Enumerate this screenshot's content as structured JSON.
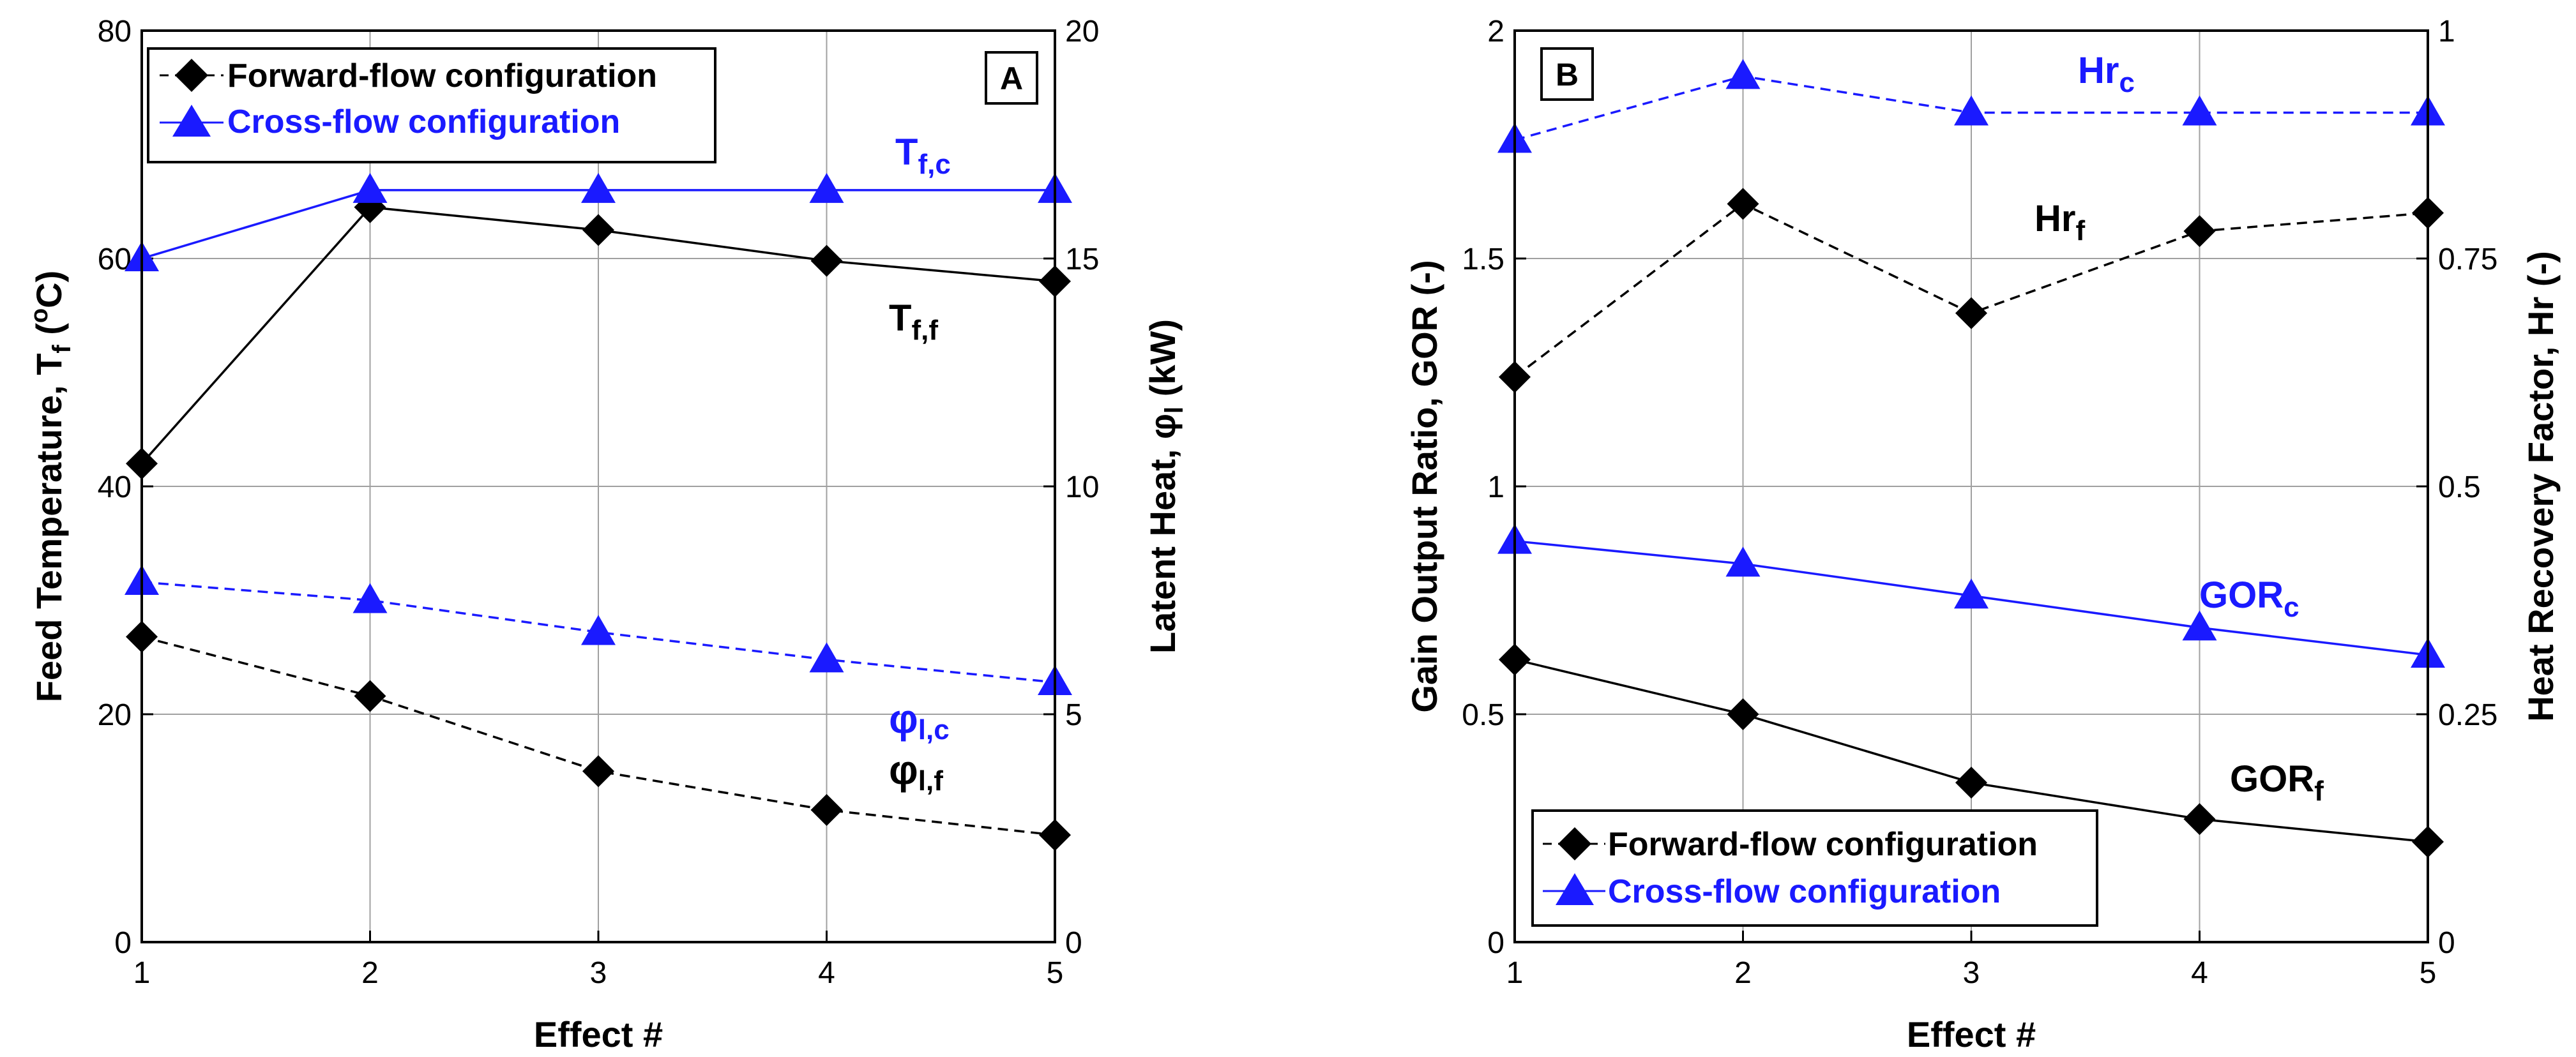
{
  "chart_data": [
    {
      "panel": "A",
      "type": "line",
      "xlabel": "Effect #",
      "ylabel_left": "Feed Temperature, T_f (°C)",
      "ylabel_right": "Latent Heat, φl (kW)",
      "x": [
        1,
        2,
        3,
        4,
        5
      ],
      "xlim": [
        1,
        5
      ],
      "ylim_left": [
        0,
        80
      ],
      "ylim_right": [
        0,
        20
      ],
      "yticks_left": [
        0,
        20,
        40,
        60,
        80
      ],
      "yticks_right": [
        0,
        5,
        10,
        15,
        20
      ],
      "xticks": [
        1,
        2,
        3,
        4,
        5
      ],
      "grid": true,
      "legend": "top-left",
      "legend_entries": [
        {
          "label": "Forward-flow configuration",
          "color": "#000000",
          "marker": "diamond"
        },
        {
          "label": "Cross-flow configuration",
          "color": "#1a1aff",
          "marker": "triangle"
        }
      ],
      "series": [
        {
          "name": "T_f,f",
          "axis": "left",
          "style": "solid",
          "color": "#000000",
          "marker": "diamond",
          "values": [
            42,
            64.5,
            62.5,
            59.8,
            58
          ]
        },
        {
          "name": "T_f,c",
          "axis": "left",
          "style": "solid",
          "color": "#1a1aff",
          "marker": "triangle",
          "values": [
            60,
            66,
            66,
            66,
            66
          ]
        },
        {
          "name": "φl,c",
          "axis": "right",
          "style": "dashed",
          "color": "#1a1aff",
          "marker": "triangle",
          "values": [
            7.9,
            7.5,
            6.8,
            6.2,
            5.7
          ]
        },
        {
          "name": "φl,f",
          "axis": "right",
          "style": "dashed",
          "color": "#000000",
          "marker": "diamond",
          "values": [
            6.7,
            5.4,
            3.75,
            2.9,
            2.35
          ]
        }
      ]
    },
    {
      "panel": "B",
      "type": "line",
      "xlabel": "Effect #",
      "ylabel_left": "Gain Output Ratio, GOR (-)",
      "ylabel_right": "Heat Recovery Factor, Hr (-)",
      "x": [
        1,
        2,
        3,
        4,
        5
      ],
      "xlim": [
        1,
        5
      ],
      "ylim_left": [
        0,
        2
      ],
      "ylim_right": [
        0,
        1
      ],
      "yticks_left": [
        "0",
        "0.5",
        "1",
        "1.5",
        "2"
      ],
      "yticks_right": [
        "0",
        "0.25",
        "0.5",
        "0.75",
        "1"
      ],
      "xticks": [
        1,
        2,
        3,
        4,
        5
      ],
      "grid": true,
      "legend": "bottom-left",
      "legend_entries": [
        {
          "label": "Forward-flow configuration",
          "color": "#000000",
          "marker": "diamond"
        },
        {
          "label": "Cross-flow configuration",
          "color": "#1a1aff",
          "marker": "triangle"
        }
      ],
      "series": [
        {
          "name": "Hr_c",
          "axis": "right",
          "style": "dashed",
          "color": "#1a1aff",
          "marker": "triangle",
          "values": [
            0.88,
            0.95,
            0.91,
            0.91,
            0.91
          ]
        },
        {
          "name": "Hr_f",
          "axis": "right",
          "style": "dashed",
          "color": "#000000",
          "marker": "diamond",
          "values": [
            0.62,
            0.81,
            0.69,
            0.78,
            0.8
          ]
        },
        {
          "name": "GOR_c",
          "axis": "left",
          "style": "solid",
          "color": "#1a1aff",
          "marker": "triangle",
          "values": [
            0.88,
            0.83,
            0.76,
            0.69,
            0.63
          ]
        },
        {
          "name": "GOR_f",
          "axis": "left",
          "style": "solid",
          "color": "#000000",
          "marker": "diamond",
          "values": [
            0.62,
            0.5,
            0.35,
            0.27,
            0.22
          ]
        }
      ]
    }
  ],
  "panel_labels": {
    "a": "A",
    "b": "B"
  },
  "axis_text": {
    "a_xlabel": "Effect #",
    "a_ylabel_left_main": "Feed Temperature, T",
    "a_ylabel_left_sub": "f",
    "a_ylabel_left_tail": " (",
    "a_ylabel_left_sup": "o",
    "a_ylabel_left_end": "C)",
    "a_ylabel_right_main": "Latent Heat, ",
    "a_ylabel_right_phi": "φ",
    "a_ylabel_right_sub": "l",
    "a_ylabel_right_end": " (kW)",
    "b_xlabel": "Effect #",
    "b_ylabel_left": "Gain Output Ratio, GOR (-)",
    "b_ylabel_right": "Heat Recovery Factor, Hr (-)"
  },
  "annotations": {
    "tfc_main": "T",
    "tfc_sub": "f,c",
    "tff_main": "T",
    "tff_sub": "f,f",
    "phic_main": "φ",
    "phic_sub": "l,c",
    "phif_main": "φ",
    "phif_sub": "l,f",
    "hrc_main": "Hr",
    "hrc_sub": "c",
    "hrf_main": "Hr",
    "hrf_sub": "f",
    "gorc_main": "GOR",
    "gorc_sub": "c",
    "gorf_main": "GOR",
    "gorf_sub": "f"
  },
  "legends": {
    "a_forward": "Forward-flow configuration",
    "a_cross": "Cross-flow configuration",
    "b_forward": "Forward-flow configuration",
    "b_cross": "Cross-flow configuration"
  },
  "colors": {
    "black": "#000000",
    "blue": "#1a1aff",
    "grid": "#a0a0a0"
  }
}
